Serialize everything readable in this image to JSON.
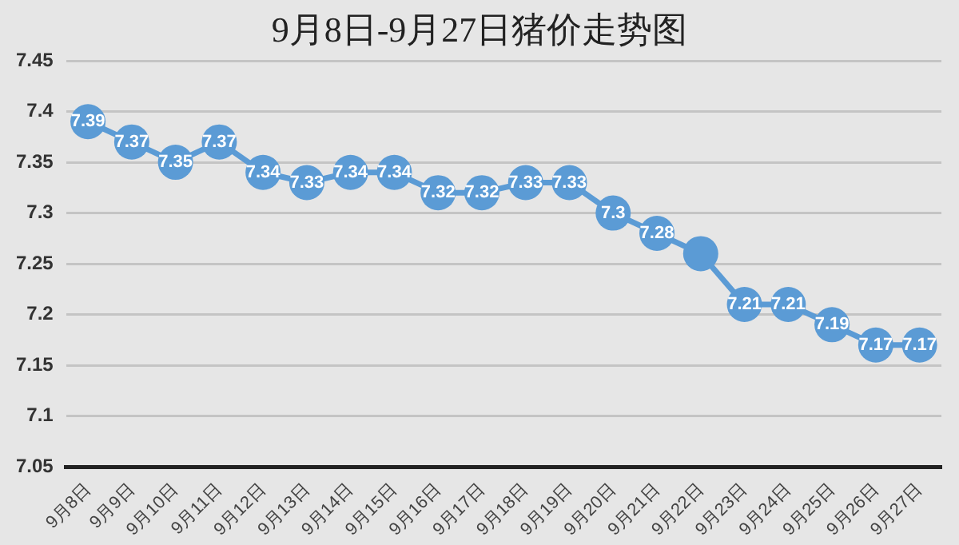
{
  "chart_data": {
    "type": "line",
    "title": "9月8日-9月27日猪价走势图",
    "categories": [
      "9月8日",
      "9月9日",
      "9月10日",
      "9月11日",
      "9月12日",
      "9月13日",
      "9月14日",
      "9月15日",
      "9月16日",
      "9月17日",
      "9月18日",
      "9月19日",
      "9月20日",
      "9月21日",
      "9月22日",
      "9月23日",
      "9月24日",
      "9月25日",
      "9月26日",
      "9月27日"
    ],
    "series": [
      {
        "color": "#5b9bd5",
        "values": [
          7.39,
          7.37,
          7.35,
          7.37,
          7.34,
          7.33,
          7.34,
          7.34,
          7.32,
          7.32,
          7.33,
          7.33,
          7.3,
          7.28,
          7.26,
          7.21,
          7.21,
          7.19,
          7.17,
          7.17
        ],
        "value_labels": [
          "7.39",
          "7.37",
          "7.35",
          "7.37",
          "7.34",
          "7.33",
          "7.34",
          "7.34",
          "7.32",
          "7.32",
          "7.33",
          "7.33",
          "7.3",
          "7.28",
          null,
          "7.21",
          "7.21",
          "7.19",
          "7.17",
          "7.17"
        ]
      }
    ],
    "ylim": [
      7.05,
      7.45
    ],
    "yticks": [
      7.05,
      7.1,
      7.15,
      7.2,
      7.25,
      7.3,
      7.35,
      7.4,
      7.45
    ],
    "grid": "y",
    "legend": false,
    "marker": "circle",
    "line_style": "solid"
  }
}
